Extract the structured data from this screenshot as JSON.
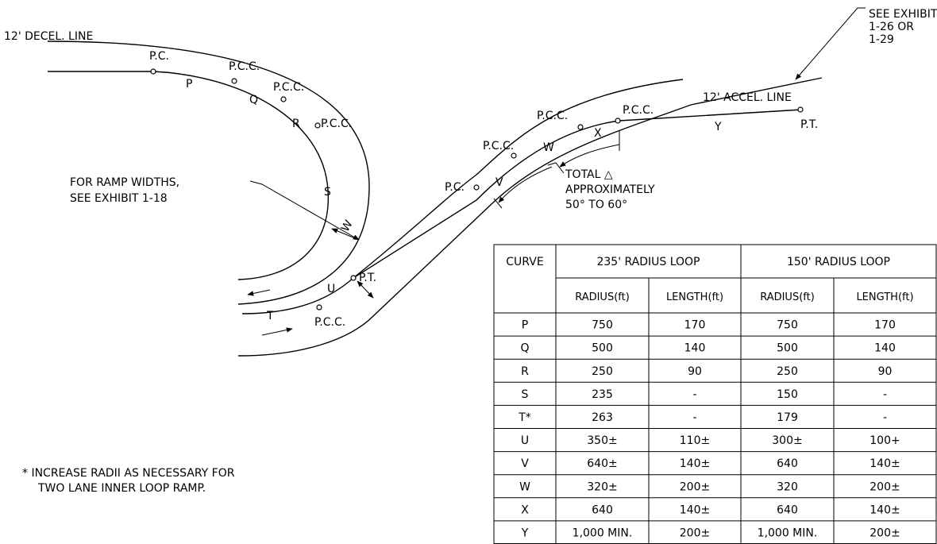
{
  "drawing_labels": [
    "12' DECEL. LINE",
    "P.C.",
    "P",
    "P.C.C.",
    "Q",
    "P.C.C.",
    "R",
    "P.C.C.",
    "S",
    "W",
    "U",
    "P.T.",
    "T",
    "P.C.C.",
    "FOR RAMP WIDTHS,",
    "SEE EXHIBIT 1-18",
    "P.C.",
    "V",
    "P.C.C.",
    "W",
    "P.C.C.",
    "X",
    "P.C.C.",
    "12' ACCEL. LINE",
    "Y",
    "P.T.",
    "SEE EXHIBIT",
    "1-26 OR",
    "1-29",
    "TOTAL △",
    "APPROXIMATELY",
    "50° TO 60°"
  ],
  "footnote": [
    "* INCREASE RADII AS NECESSARY FOR",
    "TWO LANE INNER LOOP RAMP."
  ],
  "table": {
    "header": [
      "CURVE",
      "235' RADIUS LOOP",
      "150' RADIUS LOOP"
    ],
    "subheader": [
      "RADIUS(ft)",
      "LENGTH(ft)",
      "RADIUS(ft)",
      "LENGTH(ft)"
    ],
    "rows": [
      [
        "P",
        "750",
        "170",
        "750",
        "170"
      ],
      [
        "Q",
        "500",
        "140",
        "500",
        "140"
      ],
      [
        "R",
        "250",
        "90",
        "250",
        "90"
      ],
      [
        "S",
        "235",
        "-",
        "150",
        "-"
      ],
      [
        "T*",
        "263",
        "-",
        "179",
        "-"
      ],
      [
        "U",
        "350±",
        "110±",
        "300±",
        "100+"
      ],
      [
        "V",
        "640±",
        "140±",
        "640",
        "140±"
      ],
      [
        "W",
        "320±",
        "200±",
        "320",
        "200±"
      ],
      [
        "X",
        "640",
        "140±",
        "640",
        "140±"
      ],
      [
        "Y",
        "1,000 MIN.",
        "200±",
        "1,000 MIN.",
        "200±"
      ]
    ]
  }
}
